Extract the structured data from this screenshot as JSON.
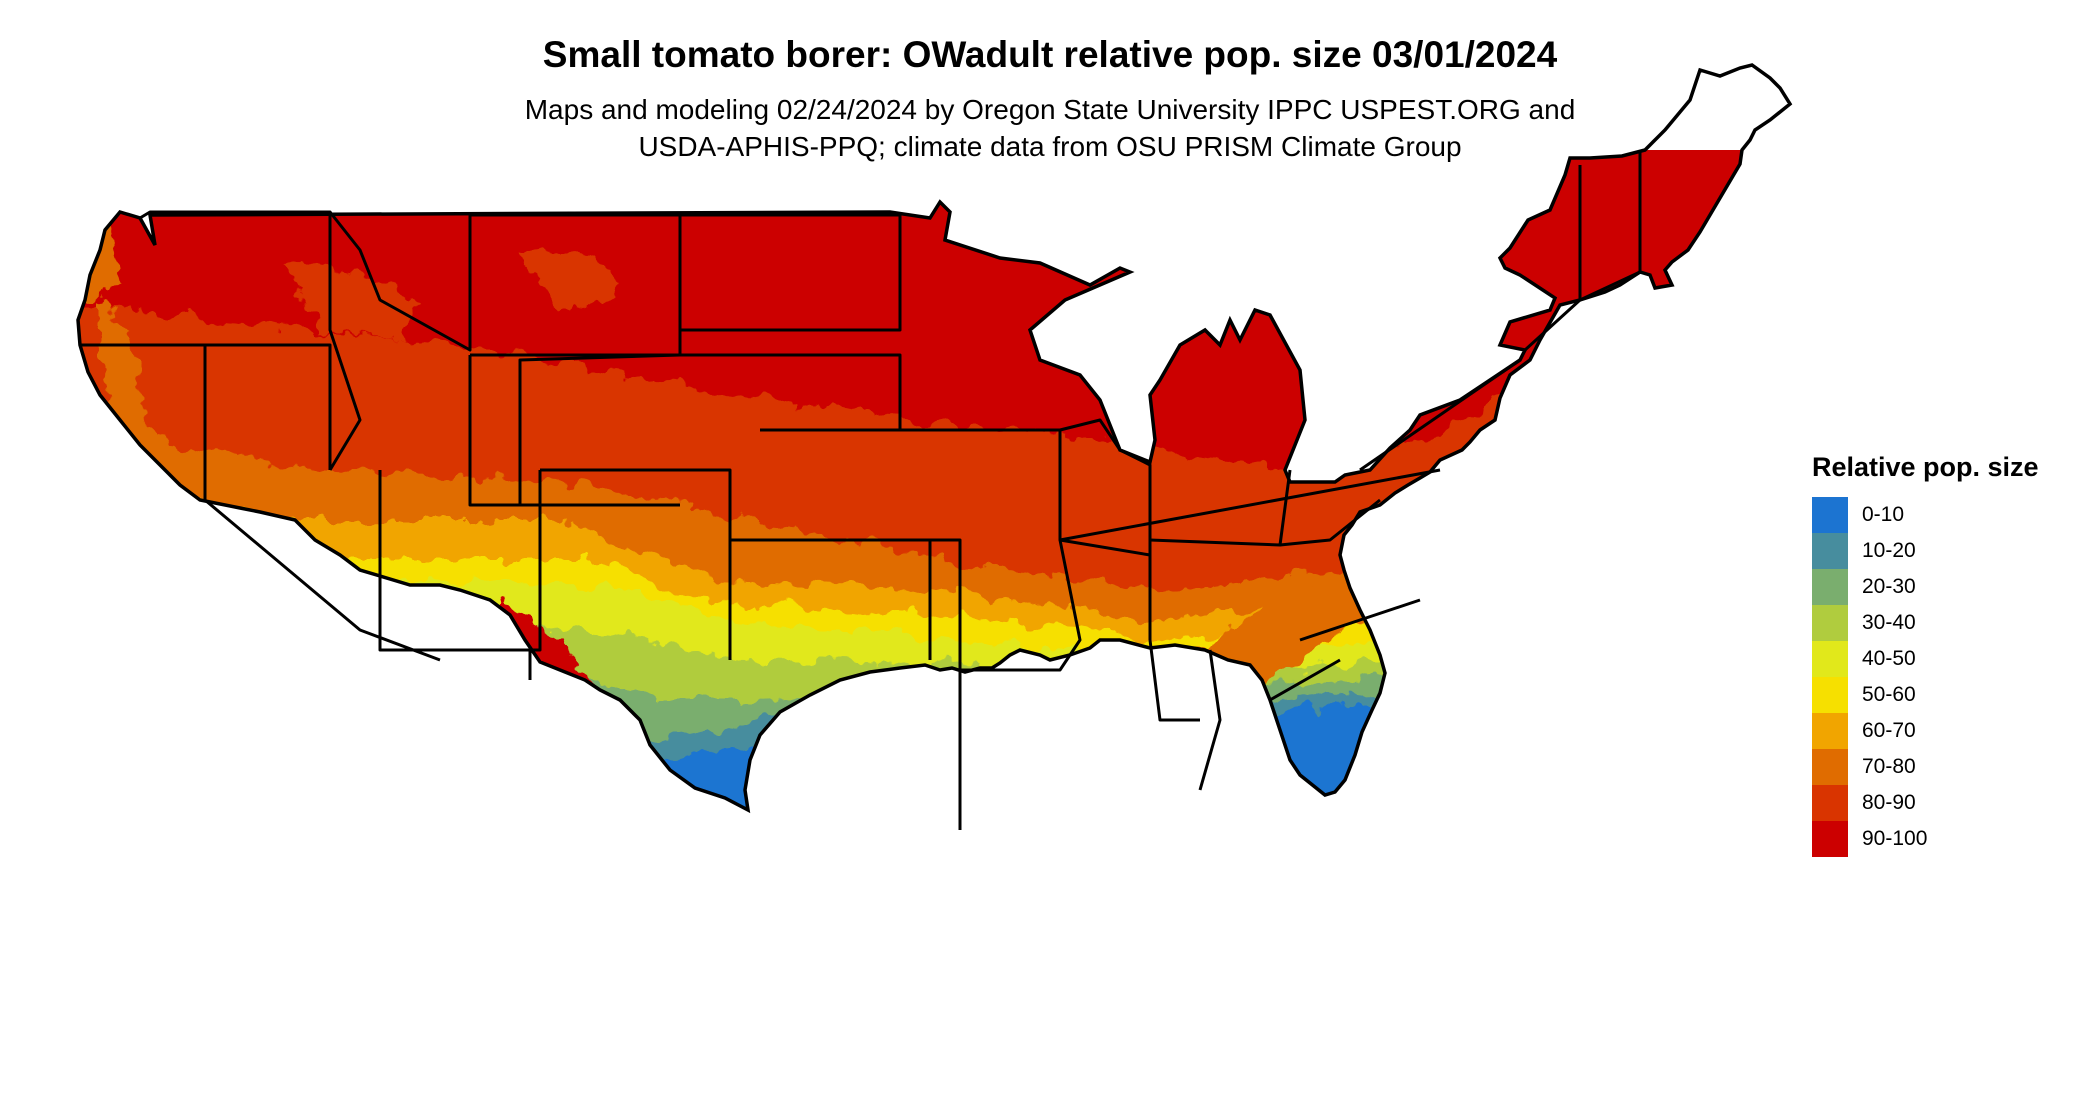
{
  "title": "Small tomato borer: OWadult relative pop. size 03/01/2024",
  "subtitle_line1": "Maps and modeling 02/24/2024 by Oregon State University IPPC USPEST.ORG and",
  "subtitle_line2": "USDA-APHIS-PPQ; climate data from OSU PRISM Climate Group",
  "legend": {
    "title": "Relative pop. size",
    "classes": [
      {
        "label": "0-10",
        "color": "#1c74d1"
      },
      {
        "label": "10-20",
        "color": "#478d9e"
      },
      {
        "label": "20-30",
        "color": "#7aae6e"
      },
      {
        "label": "30-40",
        "color": "#b0cc3e"
      },
      {
        "label": "40-50",
        "color": "#e1e81b"
      },
      {
        "label": "50-60",
        "color": "#f6e000"
      },
      {
        "label": "60-70",
        "color": "#f1a500"
      },
      {
        "label": "70-80",
        "color": "#e06c00"
      },
      {
        "label": "80-90",
        "color": "#d93400"
      },
      {
        "label": "90-100",
        "color": "#cc0000"
      }
    ]
  },
  "map": {
    "region": "contiguous-united-states",
    "boundaries": "state-borders",
    "border_color": "#000000"
  }
}
